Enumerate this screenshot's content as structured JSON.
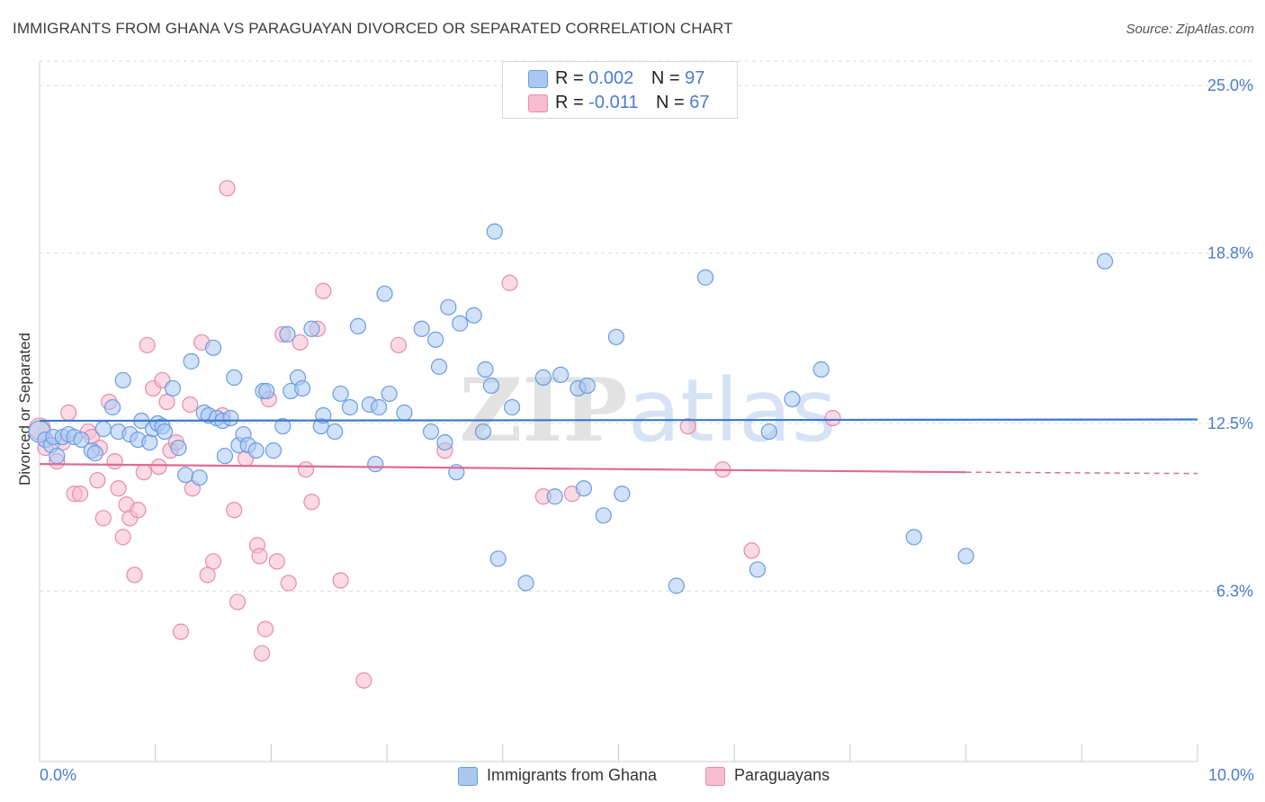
{
  "header": {
    "title": "IMMIGRANTS FROM GHANA VS PARAGUAYAN DIVORCED OR SEPARATED CORRELATION CHART",
    "source": "Source: ZipAtlas.com"
  },
  "legend_top": {
    "rows": [
      {
        "r_label": "R = ",
        "r_value": "0.002",
        "n_label": "N = ",
        "n_value": "97"
      },
      {
        "r_label": "R = ",
        "r_value": "-0.011",
        "n_label": "N = ",
        "n_value": "67"
      }
    ]
  },
  "colors": {
    "blue_fill": "#aac8f2",
    "blue_stroke": "#6a9de0",
    "blue_line": "#3a78d0",
    "pink_fill": "#f7bcd0",
    "pink_stroke": "#e98aaa",
    "pink_line": "#e06a94",
    "axis_text": "#4a7ccf",
    "grid": "#dddddd"
  },
  "chart_data": {
    "type": "scatter",
    "title": "IMMIGRANTS FROM GHANA VS PARAGUAYAN DIVORCED OR SEPARATED CORRELATION CHART",
    "xlabel": "",
    "ylabel": "Divorced or Separated",
    "xlim": [
      0,
      10
    ],
    "ylim": [
      0,
      25.9
    ],
    "x_tick_labels": [
      "0.0%",
      "10.0%"
    ],
    "y_ticks": [
      6.3,
      12.5,
      18.8,
      25.0
    ],
    "y_tick_labels": [
      "6.3%",
      "12.5%",
      "18.8%",
      "25.0%"
    ],
    "grid": "horizontal dashed",
    "legend_position": "bottom",
    "watermark": "ZIPatlas",
    "series": [
      {
        "name": "Immigrants from Ghana",
        "R": 0.002,
        "N": 97,
        "trend": {
          "x": [
            0,
            10
          ],
          "y": [
            12.6,
            12.65
          ]
        },
        "points": [
          [
            0.0,
            12.2
          ],
          [
            0.05,
            11.9
          ],
          [
            0.1,
            11.7
          ],
          [
            0.12,
            12.0
          ],
          [
            0.15,
            11.3
          ],
          [
            0.2,
            12.0
          ],
          [
            0.25,
            12.1
          ],
          [
            0.3,
            12.0
          ],
          [
            0.36,
            11.9
          ],
          [
            0.45,
            11.5
          ],
          [
            0.48,
            11.4
          ],
          [
            0.55,
            12.3
          ],
          [
            0.63,
            13.1
          ],
          [
            0.68,
            12.2
          ],
          [
            0.72,
            14.1
          ],
          [
            0.78,
            12.1
          ],
          [
            0.85,
            11.9
          ],
          [
            0.88,
            12.6
          ],
          [
            0.95,
            11.8
          ],
          [
            0.98,
            12.3
          ],
          [
            1.02,
            12.5
          ],
          [
            1.06,
            12.4
          ],
          [
            1.08,
            12.2
          ],
          [
            1.15,
            13.8
          ],
          [
            1.2,
            11.6
          ],
          [
            1.26,
            10.6
          ],
          [
            1.31,
            14.8
          ],
          [
            1.38,
            10.5
          ],
          [
            1.42,
            12.9
          ],
          [
            1.46,
            12.8
          ],
          [
            1.5,
            15.3
          ],
          [
            1.53,
            12.7
          ],
          [
            1.58,
            12.6
          ],
          [
            1.6,
            11.3
          ],
          [
            1.65,
            12.7
          ],
          [
            1.68,
            14.2
          ],
          [
            1.72,
            11.7
          ],
          [
            1.76,
            12.1
          ],
          [
            1.8,
            11.7
          ],
          [
            1.87,
            11.5
          ],
          [
            1.93,
            13.7
          ],
          [
            1.96,
            13.7
          ],
          [
            2.02,
            11.5
          ],
          [
            2.1,
            12.4
          ],
          [
            2.14,
            15.8
          ],
          [
            2.17,
            13.7
          ],
          [
            2.23,
            14.2
          ],
          [
            2.27,
            13.8
          ],
          [
            2.35,
            16.0
          ],
          [
            2.43,
            12.4
          ],
          [
            2.45,
            12.8
          ],
          [
            2.55,
            12.2
          ],
          [
            2.6,
            13.6
          ],
          [
            2.68,
            13.1
          ],
          [
            2.75,
            16.1
          ],
          [
            2.85,
            13.2
          ],
          [
            2.9,
            11.0
          ],
          [
            2.93,
            13.1
          ],
          [
            2.98,
            17.3
          ],
          [
            3.02,
            13.6
          ],
          [
            3.15,
            12.9
          ],
          [
            3.3,
            16.0
          ],
          [
            3.38,
            12.2
          ],
          [
            3.42,
            15.6
          ],
          [
            3.45,
            14.6
          ],
          [
            3.5,
            11.8
          ],
          [
            3.53,
            16.8
          ],
          [
            3.6,
            10.7
          ],
          [
            3.63,
            16.2
          ],
          [
            3.75,
            16.5
          ],
          [
            3.83,
            12.2
          ],
          [
            3.85,
            14.5
          ],
          [
            3.9,
            13.9
          ],
          [
            3.93,
            19.6
          ],
          [
            3.96,
            7.5
          ],
          [
            4.08,
            13.1
          ],
          [
            4.2,
            6.6
          ],
          [
            4.35,
            14.2
          ],
          [
            4.45,
            9.8
          ],
          [
            4.5,
            14.3
          ],
          [
            4.65,
            13.8
          ],
          [
            4.7,
            10.1
          ],
          [
            4.73,
            13.9
          ],
          [
            4.87,
            9.1
          ],
          [
            4.98,
            15.7
          ],
          [
            5.03,
            9.9
          ],
          [
            5.5,
            6.5
          ],
          [
            5.75,
            17.9
          ],
          [
            6.2,
            7.1
          ],
          [
            6.3,
            12.2
          ],
          [
            6.5,
            13.4
          ],
          [
            6.75,
            14.5
          ],
          [
            7.55,
            8.3
          ],
          [
            8.0,
            7.6
          ],
          [
            9.2,
            18.5
          ]
        ]
      },
      {
        "name": "Paraguayans",
        "R": -0.011,
        "N": 67,
        "trend": {
          "x": [
            0,
            8.0
          ],
          "y": [
            11.0,
            10.7
          ]
        },
        "trend_dashed": {
          "x": [
            8.0,
            10
          ],
          "y": [
            10.7,
            10.65
          ]
        },
        "points": [
          [
            0.0,
            12.3
          ],
          [
            0.05,
            11.6
          ],
          [
            0.15,
            11.1
          ],
          [
            0.2,
            11.8
          ],
          [
            0.25,
            12.9
          ],
          [
            0.3,
            9.9
          ],
          [
            0.35,
            9.9
          ],
          [
            0.42,
            12.2
          ],
          [
            0.45,
            12.0
          ],
          [
            0.5,
            10.4
          ],
          [
            0.52,
            11.6
          ],
          [
            0.55,
            9.0
          ],
          [
            0.6,
            13.3
          ],
          [
            0.65,
            11.1
          ],
          [
            0.68,
            10.1
          ],
          [
            0.72,
            8.3
          ],
          [
            0.75,
            9.5
          ],
          [
            0.78,
            9.0
          ],
          [
            0.82,
            6.9
          ],
          [
            0.85,
            9.3
          ],
          [
            0.9,
            10.7
          ],
          [
            0.93,
            15.4
          ],
          [
            0.98,
            13.8
          ],
          [
            1.03,
            10.9
          ],
          [
            1.06,
            14.1
          ],
          [
            1.1,
            13.3
          ],
          [
            1.13,
            11.5
          ],
          [
            1.18,
            11.8
          ],
          [
            1.22,
            4.8
          ],
          [
            1.3,
            13.2
          ],
          [
            1.32,
            10.1
          ],
          [
            1.4,
            15.5
          ],
          [
            1.45,
            6.9
          ],
          [
            1.5,
            7.4
          ],
          [
            1.58,
            12.8
          ],
          [
            1.62,
            21.2
          ],
          [
            1.68,
            9.3
          ],
          [
            1.71,
            5.9
          ],
          [
            1.78,
            11.2
          ],
          [
            1.88,
            8.0
          ],
          [
            1.9,
            7.6
          ],
          [
            1.92,
            4.0
          ],
          [
            1.95,
            4.9
          ],
          [
            1.98,
            13.4
          ],
          [
            2.05,
            7.4
          ],
          [
            2.1,
            15.8
          ],
          [
            2.15,
            6.6
          ],
          [
            2.25,
            15.5
          ],
          [
            2.3,
            10.8
          ],
          [
            2.35,
            9.6
          ],
          [
            2.4,
            16.0
          ],
          [
            2.45,
            17.4
          ],
          [
            2.6,
            6.7
          ],
          [
            2.8,
            3.0
          ],
          [
            3.1,
            15.4
          ],
          [
            3.5,
            11.5
          ],
          [
            4.06,
            17.7
          ],
          [
            4.35,
            9.8
          ],
          [
            4.6,
            9.9
          ],
          [
            5.6,
            12.4
          ],
          [
            5.9,
            10.8
          ],
          [
            6.15,
            7.8
          ],
          [
            6.85,
            12.7
          ]
        ]
      }
    ]
  },
  "legend_bottom": {
    "items": [
      "Immigrants from Ghana",
      "Paraguayans"
    ]
  }
}
